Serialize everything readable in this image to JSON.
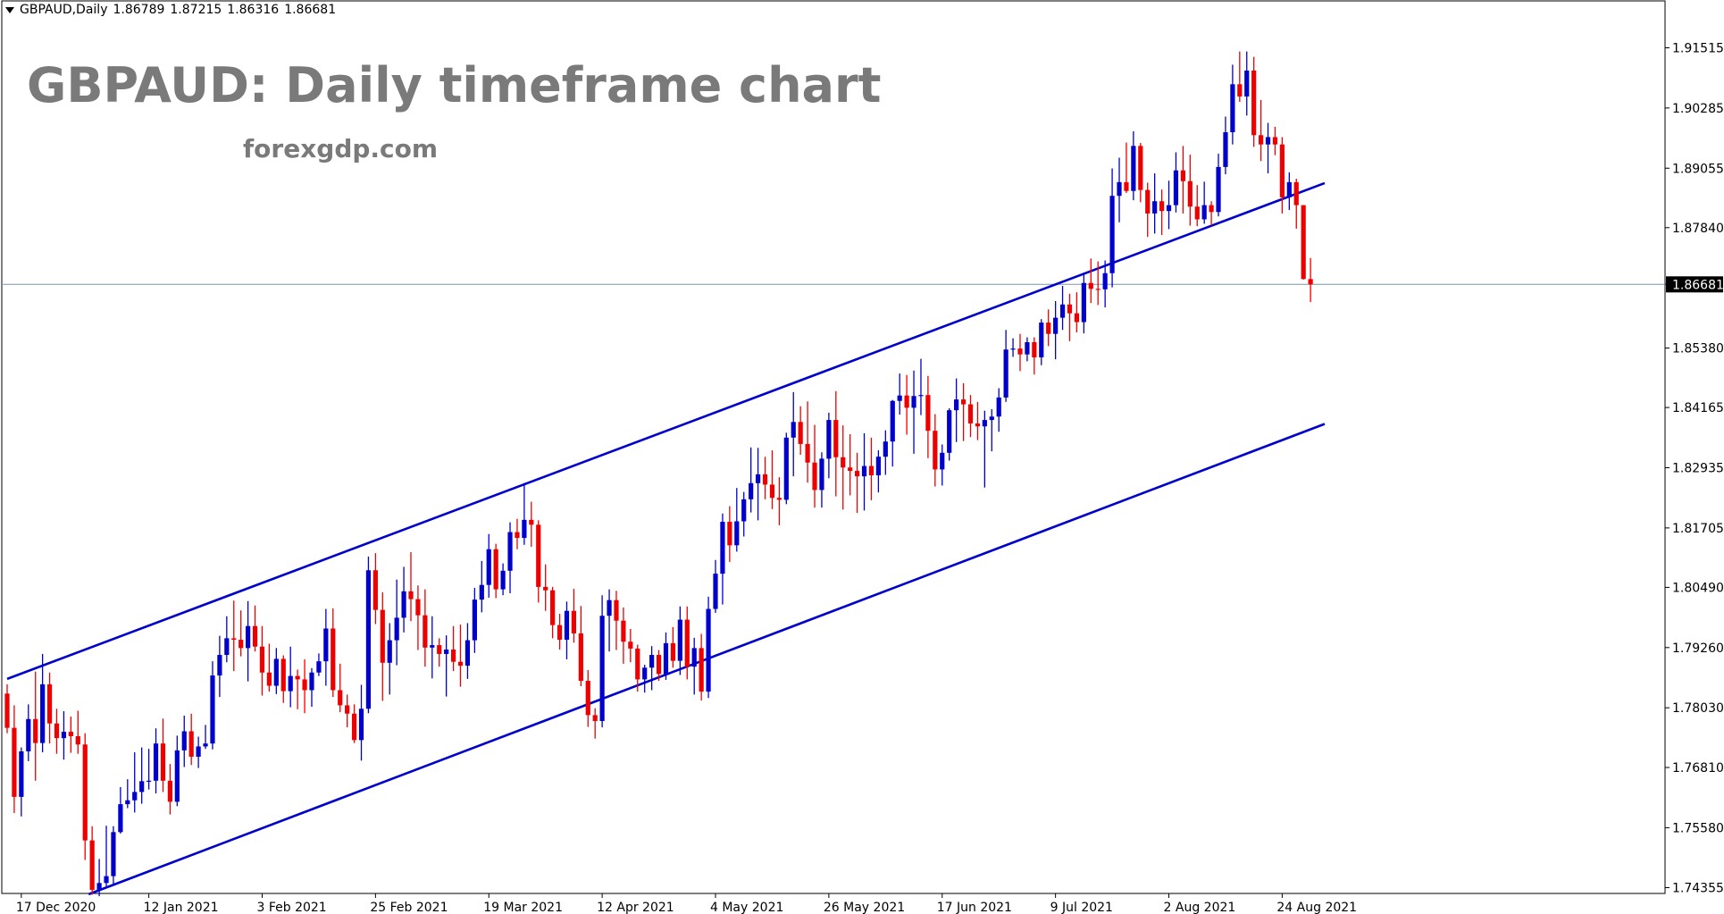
{
  "header": {
    "symbol": "GBPAUD,Daily",
    "open": "1.86789",
    "high": "1.87215",
    "low": "1.86316",
    "close": "1.86681"
  },
  "overlay": {
    "title": "GBPAUD: Daily timeframe chart",
    "site": "forexgdp.com"
  },
  "colors": {
    "bull": "#0000cc",
    "bear": "#ee0000",
    "channel": "#0000cc",
    "price_line": "#7f95b5",
    "axis": "#000000"
  },
  "chart_data": {
    "type": "candlestick",
    "symbol": "GBPAUD",
    "timeframe": "Daily",
    "y_tick_labels": [
      "1.91515",
      "1.90285",
      "1.89055",
      "1.87840",
      "1.86681",
      "1.85380",
      "1.84165",
      "1.82935",
      "1.81705",
      "1.80490",
      "1.79260",
      "1.78030",
      "1.76810",
      "1.75580",
      "1.74355"
    ],
    "ylim": [
      1.7406,
      1.9216
    ],
    "current_price": "1.86681",
    "x_tick_labels": [
      "17 Dec 2020",
      "12 Jan 2021",
      "3 Feb 2021",
      "25 Feb 2021",
      "19 Mar 2021",
      "12 Apr 2021",
      "4 May 2021",
      "26 May 2021",
      "17 Jun 2021",
      "9 Jul 2021",
      "2 Aug 2021",
      "24 Aug 2021"
    ],
    "x_tick_bar_index": [
      2,
      20,
      36,
      52,
      68,
      84,
      100,
      116,
      132,
      148,
      164,
      180
    ],
    "bar_count": 187,
    "ohlc": [
      [
        1.7832,
        1.7851,
        1.7751,
        1.7762
      ],
      [
        1.7762,
        1.7808,
        1.7588,
        1.7621
      ],
      [
        1.7621,
        1.7722,
        1.7581,
        1.7714
      ],
      [
        1.7714,
        1.781,
        1.7694,
        1.778
      ],
      [
        1.778,
        1.7877,
        1.7654,
        1.7731
      ],
      [
        1.7731,
        1.7913,
        1.7712,
        1.7851
      ],
      [
        1.7851,
        1.7875,
        1.773,
        1.7771
      ],
      [
        1.7771,
        1.7801,
        1.7709,
        1.7741
      ],
      [
        1.7741,
        1.7796,
        1.7697,
        1.7754
      ],
      [
        1.7754,
        1.7785,
        1.7711,
        1.7745
      ],
      [
        1.7745,
        1.7797,
        1.7709,
        1.7728
      ],
      [
        1.7728,
        1.7751,
        1.7492,
        1.7532
      ],
      [
        1.7532,
        1.7561,
        1.7421,
        1.7431
      ],
      [
        1.7431,
        1.7494,
        1.7418,
        1.7445
      ],
      [
        1.7445,
        1.7562,
        1.7438,
        1.7459
      ],
      [
        1.7459,
        1.7561,
        1.7441,
        1.7549
      ],
      [
        1.7549,
        1.7641,
        1.7546,
        1.7606
      ],
      [
        1.7606,
        1.7657,
        1.7598,
        1.7614
      ],
      [
        1.7614,
        1.7712,
        1.7589,
        1.7631
      ],
      [
        1.7631,
        1.7722,
        1.7607,
        1.7653
      ],
      [
        1.7653,
        1.7719,
        1.7636,
        1.7654
      ],
      [
        1.7654,
        1.7761,
        1.7628,
        1.773
      ],
      [
        1.773,
        1.7781,
        1.7631,
        1.7654
      ],
      [
        1.7654,
        1.7688,
        1.7585,
        1.7611
      ],
      [
        1.7611,
        1.7746,
        1.7602,
        1.7716
      ],
      [
        1.7716,
        1.7787,
        1.7682,
        1.7755
      ],
      [
        1.7755,
        1.7791,
        1.7686,
        1.7703
      ],
      [
        1.7703,
        1.7744,
        1.768,
        1.7724
      ],
      [
        1.7724,
        1.7768,
        1.7719,
        1.773
      ],
      [
        1.773,
        1.7898,
        1.7718,
        1.7869
      ],
      [
        1.7869,
        1.795,
        1.7825,
        1.7911
      ],
      [
        1.7911,
        1.799,
        1.7896,
        1.7945
      ],
      [
        1.7945,
        1.8022,
        1.7878,
        1.7942
      ],
      [
        1.7942,
        1.8002,
        1.7908,
        1.7925
      ],
      [
        1.7925,
        1.8021,
        1.7857,
        1.797
      ],
      [
        1.797,
        1.8012,
        1.7918,
        1.7928
      ],
      [
        1.7928,
        1.797,
        1.7828,
        1.7875
      ],
      [
        1.7875,
        1.7934,
        1.7836,
        1.7848
      ],
      [
        1.7848,
        1.7925,
        1.7831,
        1.7903
      ],
      [
        1.7903,
        1.791,
        1.7813,
        1.7837
      ],
      [
        1.7837,
        1.7928,
        1.7804,
        1.7868
      ],
      [
        1.7868,
        1.7881,
        1.78,
        1.7861
      ],
      [
        1.7861,
        1.7902,
        1.7792,
        1.7839
      ],
      [
        1.7839,
        1.7884,
        1.7805,
        1.7875
      ],
      [
        1.7875,
        1.7914,
        1.7868,
        1.7898
      ],
      [
        1.7898,
        1.8005,
        1.7848,
        1.7965
      ],
      [
        1.7965,
        1.8006,
        1.7825,
        1.7839
      ],
      [
        1.7839,
        1.7893,
        1.7794,
        1.7808
      ],
      [
        1.7808,
        1.783,
        1.7763,
        1.7791
      ],
      [
        1.7791,
        1.781,
        1.7731,
        1.7737
      ],
      [
        1.7737,
        1.785,
        1.7695,
        1.7801
      ],
      [
        1.7801,
        1.8112,
        1.7792,
        1.8084
      ],
      [
        1.8084,
        1.8119,
        1.7974,
        1.8003
      ],
      [
        1.8003,
        1.8039,
        1.7817,
        1.7895
      ],
      [
        1.7895,
        1.7976,
        1.783,
        1.7941
      ],
      [
        1.7941,
        1.8065,
        1.789,
        1.7987
      ],
      [
        1.7987,
        1.8091,
        1.7957,
        1.8041
      ],
      [
        1.8041,
        1.8121,
        1.798,
        1.8025
      ],
      [
        1.8025,
        1.8053,
        1.7921,
        1.7992
      ],
      [
        1.7992,
        1.8045,
        1.7887,
        1.7926
      ],
      [
        1.7926,
        1.799,
        1.7863,
        1.7931
      ],
      [
        1.7931,
        1.7945,
        1.7887,
        1.7913
      ],
      [
        1.7913,
        1.7951,
        1.7826,
        1.7922
      ],
      [
        1.7922,
        1.797,
        1.7878,
        1.7897
      ],
      [
        1.7897,
        1.7973,
        1.7846,
        1.7889
      ],
      [
        1.7889,
        1.7976,
        1.7862,
        1.7941
      ],
      [
        1.7941,
        1.8048,
        1.7915,
        1.8024
      ],
      [
        1.8024,
        1.8103,
        1.7998,
        1.8054
      ],
      [
        1.8054,
        1.8158,
        1.8028,
        1.8127
      ],
      [
        1.8127,
        1.8138,
        1.8027,
        1.8045
      ],
      [
        1.8045,
        1.8098,
        1.8033,
        1.8083
      ],
      [
        1.8083,
        1.8182,
        1.8037,
        1.8162
      ],
      [
        1.8162,
        1.8189,
        1.8127,
        1.815
      ],
      [
        1.815,
        1.8262,
        1.8136,
        1.8187
      ],
      [
        1.8187,
        1.8224,
        1.8132,
        1.8177
      ],
      [
        1.8177,
        1.8186,
        1.8018,
        1.805
      ],
      [
        1.805,
        1.8096,
        1.8001,
        1.8043
      ],
      [
        1.8043,
        1.805,
        1.7945,
        1.7972
      ],
      [
        1.7972,
        1.7995,
        1.7922,
        1.7942
      ],
      [
        1.7942,
        1.802,
        1.7902,
        1.8001
      ],
      [
        1.8001,
        1.8046,
        1.7936,
        1.7955
      ],
      [
        1.7955,
        1.8011,
        1.7847,
        1.7858
      ],
      [
        1.7858,
        1.788,
        1.7764,
        1.7788
      ],
      [
        1.7788,
        1.7802,
        1.774,
        1.7776
      ],
      [
        1.7776,
        1.8033,
        1.7763,
        1.7991
      ],
      [
        1.7991,
        1.8045,
        1.7918,
        1.8023
      ],
      [
        1.8023,
        1.8042,
        1.7921,
        1.7981
      ],
      [
        1.7981,
        1.8008,
        1.7893,
        1.7938
      ],
      [
        1.7938,
        1.7964,
        1.7896,
        1.7924
      ],
      [
        1.7924,
        1.7932,
        1.7836,
        1.7861
      ],
      [
        1.7861,
        1.7891,
        1.7834,
        1.7885
      ],
      [
        1.7885,
        1.7929,
        1.7839,
        1.7911
      ],
      [
        1.7911,
        1.7921,
        1.7858,
        1.7872
      ],
      [
        1.7872,
        1.7957,
        1.786,
        1.7935
      ],
      [
        1.7935,
        1.7968,
        1.7885,
        1.7899
      ],
      [
        1.7899,
        1.801,
        1.787,
        1.7983
      ],
      [
        1.7983,
        1.801,
        1.7861,
        1.7887
      ],
      [
        1.7887,
        1.7946,
        1.783,
        1.7925
      ],
      [
        1.7925,
        1.7954,
        1.7818,
        1.7836
      ],
      [
        1.7836,
        1.803,
        1.7823,
        1.8005
      ],
      [
        1.8005,
        1.8105,
        1.7997,
        1.8077
      ],
      [
        1.8077,
        1.82,
        1.8014,
        1.8183
      ],
      [
        1.8183,
        1.8215,
        1.8101,
        1.8135
      ],
      [
        1.8135,
        1.8252,
        1.8122,
        1.8184
      ],
      [
        1.8184,
        1.8244,
        1.8153,
        1.8229
      ],
      [
        1.8229,
        1.8335,
        1.8202,
        1.8262
      ],
      [
        1.8262,
        1.8334,
        1.8186,
        1.828
      ],
      [
        1.828,
        1.8316,
        1.8229,
        1.8259
      ],
      [
        1.8259,
        1.8329,
        1.8209,
        1.8232
      ],
      [
        1.8232,
        1.8274,
        1.8176,
        1.8228
      ],
      [
        1.8228,
        1.8365,
        1.8219,
        1.8355
      ],
      [
        1.8355,
        1.8448,
        1.8276,
        1.8387
      ],
      [
        1.8387,
        1.8419,
        1.832,
        1.8342
      ],
      [
        1.8342,
        1.8429,
        1.8263,
        1.8304
      ],
      [
        1.8304,
        1.8381,
        1.8212,
        1.8248
      ],
      [
        1.8248,
        1.8325,
        1.8212,
        1.8312
      ],
      [
        1.8312,
        1.8406,
        1.8272,
        1.8391
      ],
      [
        1.8391,
        1.845,
        1.8235,
        1.8315
      ],
      [
        1.8315,
        1.838,
        1.8208,
        1.8294
      ],
      [
        1.8294,
        1.8362,
        1.8237,
        1.8287
      ],
      [
        1.8287,
        1.8324,
        1.8201,
        1.8276
      ],
      [
        1.8276,
        1.8364,
        1.8206,
        1.8297
      ],
      [
        1.8297,
        1.8355,
        1.8227,
        1.8278
      ],
      [
        1.8278,
        1.8329,
        1.8243,
        1.8316
      ],
      [
        1.8316,
        1.837,
        1.8279,
        1.8347
      ],
      [
        1.8347,
        1.8432,
        1.8296,
        1.843
      ],
      [
        1.843,
        1.8486,
        1.8402,
        1.8441
      ],
      [
        1.8441,
        1.8483,
        1.8361,
        1.8416
      ],
      [
        1.8416,
        1.8492,
        1.8322,
        1.844
      ],
      [
        1.844,
        1.8516,
        1.8401,
        1.8442
      ],
      [
        1.8442,
        1.8481,
        1.8313,
        1.8369
      ],
      [
        1.8369,
        1.8403,
        1.8255,
        1.829
      ],
      [
        1.829,
        1.8341,
        1.8257,
        1.8324
      ],
      [
        1.8324,
        1.8415,
        1.8308,
        1.8411
      ],
      [
        1.8411,
        1.8476,
        1.8346,
        1.8433
      ],
      [
        1.8433,
        1.8466,
        1.8348,
        1.8423
      ],
      [
        1.8423,
        1.8442,
        1.8356,
        1.8384
      ],
      [
        1.8384,
        1.8428,
        1.835,
        1.8378
      ],
      [
        1.8378,
        1.841,
        1.8253,
        1.8391
      ],
      [
        1.8391,
        1.8413,
        1.8327,
        1.8398
      ],
      [
        1.8398,
        1.8456,
        1.8367,
        1.8437
      ],
      [
        1.8437,
        1.8575,
        1.8428,
        1.8535
      ],
      [
        1.8535,
        1.8558,
        1.852,
        1.8537
      ],
      [
        1.8537,
        1.8567,
        1.8491,
        1.8525
      ],
      [
        1.8525,
        1.856,
        1.8511,
        1.855
      ],
      [
        1.855,
        1.856,
        1.8484,
        1.8519
      ],
      [
        1.8519,
        1.8597,
        1.8503,
        1.859
      ],
      [
        1.859,
        1.8617,
        1.8542,
        1.8567
      ],
      [
        1.8567,
        1.8634,
        1.8515,
        1.86
      ],
      [
        1.86,
        1.8665,
        1.8575,
        1.8627
      ],
      [
        1.8627,
        1.8649,
        1.8552,
        1.8609
      ],
      [
        1.8609,
        1.8652,
        1.857,
        1.8591
      ],
      [
        1.8591,
        1.8691,
        1.8568,
        1.8671
      ],
      [
        1.8671,
        1.8721,
        1.863,
        1.8659
      ],
      [
        1.8659,
        1.8715,
        1.8626,
        1.8658
      ],
      [
        1.8658,
        1.8717,
        1.8621,
        1.8691
      ],
      [
        1.8691,
        1.8905,
        1.8662,
        1.8849
      ],
      [
        1.8849,
        1.8927,
        1.8795,
        1.8877
      ],
      [
        1.8877,
        1.8958,
        1.8855,
        1.8859
      ],
      [
        1.8859,
        1.8981,
        1.884,
        1.8951
      ],
      [
        1.8951,
        1.8957,
        1.8836,
        1.8861
      ],
      [
        1.8861,
        1.8876,
        1.8765,
        1.8813
      ],
      [
        1.8813,
        1.8895,
        1.8772,
        1.8838
      ],
      [
        1.8838,
        1.8862,
        1.8769,
        1.8818
      ],
      [
        1.8818,
        1.888,
        1.8781,
        1.883
      ],
      [
        1.883,
        1.8938,
        1.8815,
        1.8901
      ],
      [
        1.8901,
        1.8951,
        1.8813,
        1.8879
      ],
      [
        1.8879,
        1.8933,
        1.8788,
        1.8827
      ],
      [
        1.8827,
        1.8871,
        1.8787,
        1.8801
      ],
      [
        1.8801,
        1.8878,
        1.8792,
        1.883
      ],
      [
        1.883,
        1.8838,
        1.8788,
        1.8816
      ],
      [
        1.8816,
        1.8935,
        1.8807,
        1.8908
      ],
      [
        1.8908,
        1.9011,
        1.8893,
        1.8979
      ],
      [
        1.8979,
        1.9117,
        1.8954,
        1.9077
      ],
      [
        1.9077,
        1.9144,
        1.9041,
        1.9052
      ],
      [
        1.9052,
        1.9144,
        1.9013,
        1.9105
      ],
      [
        1.9105,
        1.9133,
        1.8949,
        1.8973
      ],
      [
        1.8973,
        1.9045,
        1.892,
        1.8954
      ],
      [
        1.8954,
        1.8998,
        1.8895,
        1.8969
      ],
      [
        1.8969,
        1.899,
        1.8932,
        1.8954
      ],
      [
        1.8954,
        1.8969,
        1.8813,
        1.8846
      ],
      [
        1.8846,
        1.8897,
        1.882,
        1.8877
      ],
      [
        1.8877,
        1.8884,
        1.8782,
        1.883
      ],
      [
        1.883,
        1.883,
        1.8678,
        1.8679
      ],
      [
        1.8679,
        1.8722,
        1.8632,
        1.8668
      ]
    ],
    "channel_lines": [
      {
        "name": "upper-channel",
        "points": [
          [
            0,
            1.7862
          ],
          [
            186,
            1.8875
          ]
        ]
      },
      {
        "name": "lower-channel",
        "points": [
          [
            11.5,
            1.7422
          ],
          [
            186,
            1.8383
          ]
        ]
      }
    ],
    "grid": false,
    "legend": "none"
  }
}
